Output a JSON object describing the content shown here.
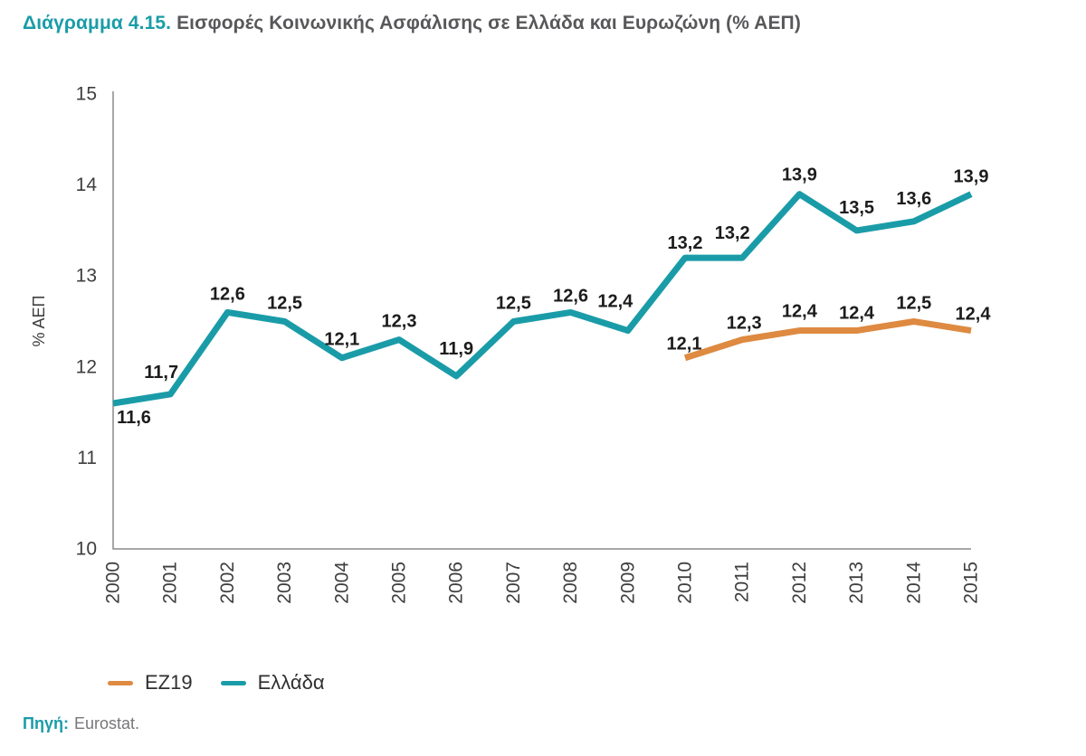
{
  "header": {
    "title_label": "Διάγραμμα 4.15.",
    "title_text": "Εισφορές Κοινωνικής Ασφάλισης σε Ελλάδα και Ευρωζώνη (% ΑΕΠ)"
  },
  "colors": {
    "teal": "#1A9CA8",
    "orange": "#DE8A41",
    "title_text": "#58585B",
    "axis": "#8A8A8A",
    "tick_label": "#3E3E3E",
    "data_label": "#1C1C1C",
    "legend_text": "#2F2F31",
    "source_text": "#77777A"
  },
  "chart_data": {
    "type": "line",
    "title": "Εισφορές Κοινωνικής Ασφάλισης σε Ελλάδα και Ευρωζώνη (% ΑΕΠ)",
    "xlabel": "",
    "ylabel": "% ΑΕΠ",
    "ylim": [
      10,
      15
    ],
    "yticks": [
      10,
      11,
      12,
      13,
      14,
      15
    ],
    "categories": [
      2000,
      2001,
      2002,
      2003,
      2004,
      2005,
      2006,
      2007,
      2008,
      2009,
      2010,
      2011,
      2012,
      2013,
      2014,
      2015
    ],
    "grid": false,
    "legend_position": "bottom-left",
    "decimal_separator": ",",
    "series": [
      {
        "name": "EZ19",
        "color": "#DE8A41",
        "x": [
          2010,
          2011,
          2012,
          2013,
          2014,
          2015
        ],
        "values": [
          12.1,
          12.3,
          12.4,
          12.4,
          12.5,
          12.4
        ],
        "labels": [
          "12,1",
          "12,3",
          "12,4",
          "12,4",
          "12,5",
          "12,4"
        ],
        "label_offsets": {
          "2010": [
            -1,
            -15
          ],
          "2011": [
            2,
            -18
          ],
          "2012": [
            0,
            -21
          ],
          "2013": [
            0,
            -19
          ],
          "2014": [
            0,
            -20
          ],
          "2015": [
            2,
            -18
          ]
        }
      },
      {
        "name": "Ελλάδα",
        "color": "#1A9CA8",
        "x": [
          2000,
          2001,
          2002,
          2003,
          2004,
          2005,
          2006,
          2007,
          2008,
          2009,
          2010,
          2011,
          2012,
          2013,
          2014,
          2015
        ],
        "values": [
          11.6,
          11.7,
          12.6,
          12.5,
          12.1,
          12.3,
          11.9,
          12.5,
          12.6,
          12.4,
          13.2,
          13.2,
          13.9,
          13.5,
          13.6,
          13.9
        ],
        "labels": [
          "11,6",
          "11,7",
          "12,6",
          "12,5",
          "12,1",
          "12,3",
          "11,9",
          "12,5",
          "12,6",
          "12,4",
          "13,2",
          "13,2",
          "13,9",
          "13,5",
          "13,6",
          "13,9"
        ],
        "label_offsets": {
          "2000": [
            23,
            16
          ],
          "2001": [
            -10,
            -24
          ],
          "2006": [
            0,
            -30
          ],
          "2008": [
            0,
            -18
          ],
          "2009": [
            -14,
            -32
          ],
          "2010": [
            0,
            -16
          ],
          "2011": [
            -11,
            -27
          ],
          "2012": [
            0,
            -21
          ],
          "2013": [
            0,
            -25
          ],
          "2014": [
            0,
            -25
          ],
          "2015": [
            0,
            -19
          ]
        }
      }
    ]
  },
  "legend": {
    "items": [
      {
        "label": "EZ19",
        "color": "#DE8A41"
      },
      {
        "label": "Ελλάδα",
        "color": "#1A9CA8"
      }
    ]
  },
  "source": {
    "label": "Πηγή:",
    "text": "Eurostat."
  }
}
